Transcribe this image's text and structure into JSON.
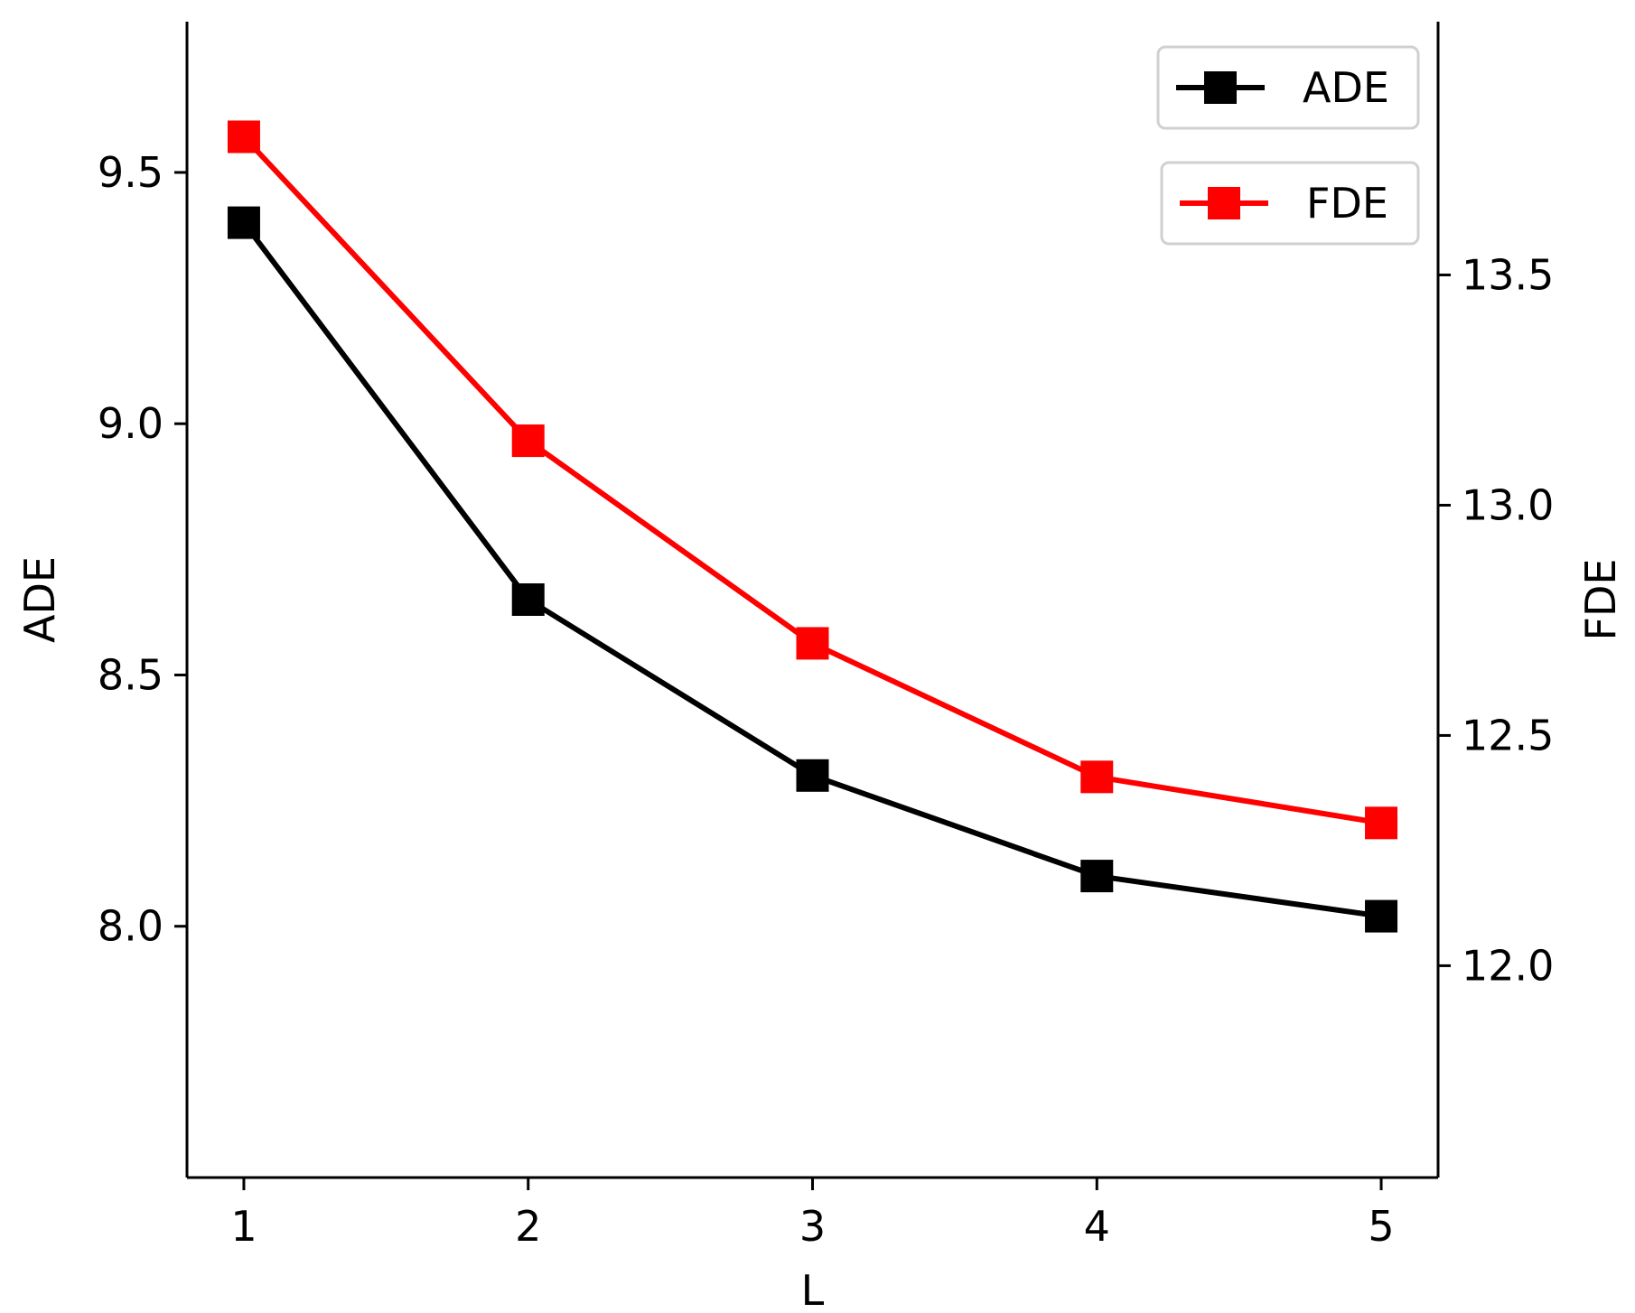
{
  "chart_data": {
    "type": "line",
    "x": [
      1,
      2,
      3,
      4,
      5
    ],
    "xlabel": "L",
    "xticks": [
      "1",
      "2",
      "3",
      "4",
      "5"
    ],
    "xlim": [
      0.8,
      5.2
    ],
    "series": [
      {
        "name": "ADE",
        "axis": "left",
        "color": "#000000",
        "marker": "square",
        "values": [
          9.4,
          8.65,
          8.3,
          8.1,
          8.02
        ]
      },
      {
        "name": "FDE",
        "axis": "right",
        "color": "#ff0000",
        "marker": "square",
        "values": [
          13.8,
          13.14,
          12.7,
          12.41,
          12.31
        ]
      }
    ],
    "y_left": {
      "label": "ADE",
      "ticks": [
        "8.0",
        "8.5",
        "9.0",
        "9.5"
      ],
      "tick_values": [
        8.0,
        8.5,
        9.0,
        9.5
      ],
      "lim": [
        7.5,
        9.8
      ]
    },
    "y_right": {
      "label": "FDE",
      "ticks": [
        "12.0",
        "12.5",
        "13.0",
        "13.5"
      ],
      "tick_values": [
        12.0,
        12.5,
        13.0,
        13.5
      ],
      "lim": [
        11.54,
        14.05
      ]
    },
    "grid": false,
    "legend": [
      {
        "label": "ADE",
        "placement": "top-right"
      },
      {
        "label": "FDE",
        "placement": "top-right"
      }
    ]
  }
}
